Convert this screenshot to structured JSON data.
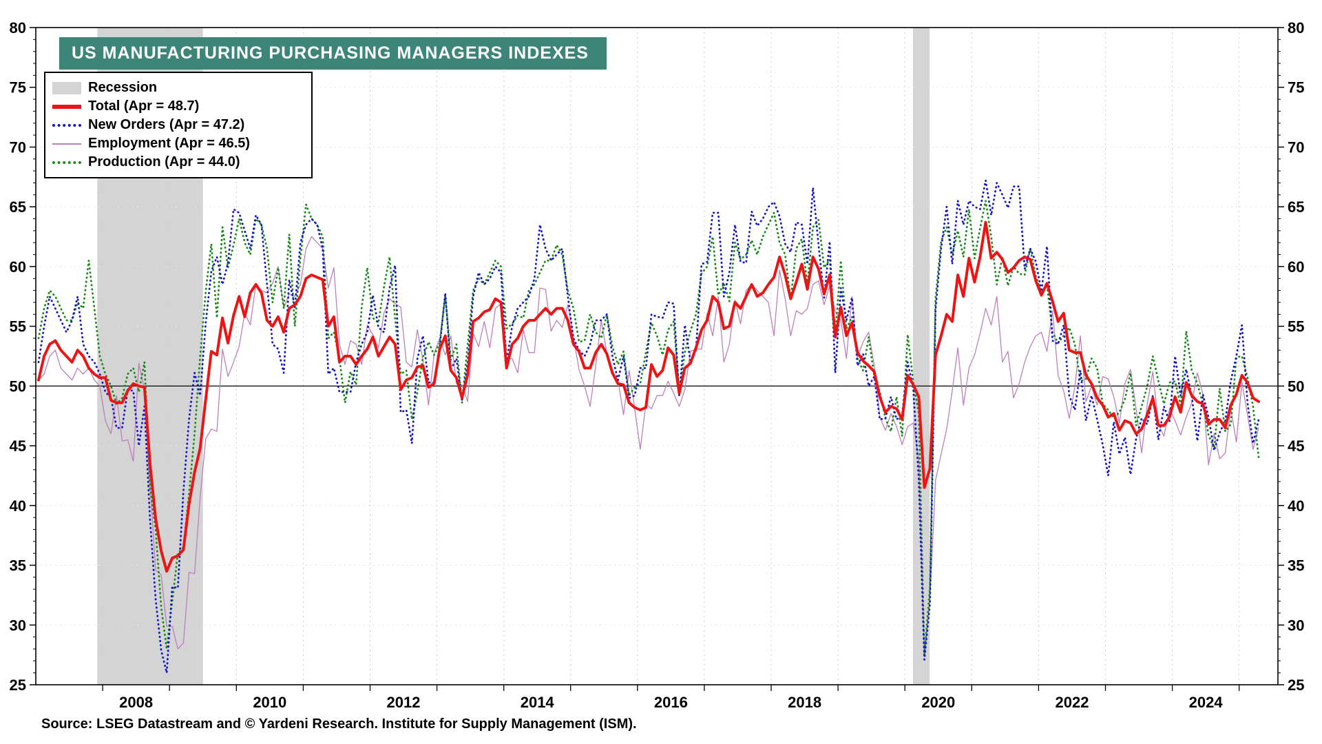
{
  "title": "US MANUFACTURING PURCHASING MANAGERS INDEXES",
  "source": "Source: LSEG Datastream and © Yardeni Research. Institute for Supply Management (ISM).",
  "legend": {
    "recession": "Recession",
    "total": "Total (Apr = 48.7)",
    "new_orders": "New Orders (Apr = 47.2)",
    "employment": "Employment (Apr = 46.5)",
    "production": "Production (Apr = 44.0)"
  },
  "chart_data": {
    "type": "line",
    "title": "US MANUFACTURING PURCHASING MANAGERS INDEXES",
    "x_range": [
      2007.0,
      2025.58
    ],
    "y_range": [
      25,
      80
    ],
    "y_tick_step": 5,
    "x_year_labels": [
      2008,
      2010,
      2012,
      2014,
      2016,
      2018,
      2020,
      2022,
      2024
    ],
    "reference_line": 50,
    "recession_bands": [
      [
        2007.92,
        2009.5
      ],
      [
        2020.12,
        2020.37
      ]
    ],
    "colors": {
      "recession": "#d4d4d4",
      "grid": "#cccccc",
      "axis": "#000000"
    },
    "start": {
      "year": 2007,
      "month": 1
    },
    "frequency": "monthly",
    "series": [
      {
        "name": "Total",
        "color": "#ec1515",
        "style": "solid",
        "width": 4,
        "latest_value": 48.7,
        "values": [
          50.5,
          52.5,
          53.5,
          53.8,
          53.0,
          52.5,
          52.0,
          53.0,
          52.5,
          51.5,
          51.0,
          50.7,
          50.7,
          48.8,
          48.6,
          48.6,
          49.6,
          50.2,
          50.0,
          49.9,
          43.5,
          38.9,
          36.2,
          34.5,
          35.6,
          35.8,
          36.3,
          40.1,
          42.8,
          44.8,
          48.9,
          52.9,
          52.6,
          55.7,
          53.6,
          55.9,
          57.5,
          55.8,
          57.8,
          58.5,
          57.8,
          55.5,
          55.0,
          55.8,
          54.5,
          56.5,
          56.8,
          57.5,
          59.0,
          59.3,
          59.1,
          58.9,
          55.0,
          55.8,
          52.0,
          52.5,
          52.5,
          51.8,
          52.5,
          53.1,
          54.1,
          52.5,
          53.3,
          54.1,
          53.5,
          49.7,
          50.5,
          50.7,
          51.6,
          51.7,
          49.9,
          50.2,
          53.1,
          54.2,
          51.3,
          50.7,
          49.0,
          50.9,
          55.4,
          55.7,
          56.2,
          56.4,
          57.3,
          57.0,
          51.5,
          53.5,
          54.0,
          55.0,
          55.5,
          55.5,
          56.0,
          56.5,
          56.0,
          56.5,
          56.5,
          55.5,
          53.5,
          52.9,
          51.5,
          51.5,
          52.8,
          53.5,
          52.7,
          51.1,
          50.2,
          50.1,
          48.6,
          48.2,
          48.0,
          48.2,
          51.8,
          50.8,
          51.3,
          53.2,
          52.6,
          49.4,
          51.5,
          51.9,
          53.2,
          54.7,
          55.5,
          57.5,
          57.0,
          54.8,
          55.0,
          57.0,
          56.5,
          57.5,
          58.5,
          57.5,
          57.8,
          58.5,
          59.1,
          60.8,
          59.3,
          57.3,
          58.7,
          60.2,
          58.1,
          60.8,
          59.8,
          57.7,
          59.3,
          54.1,
          56.6,
          54.2,
          55.3,
          52.8,
          52.1,
          51.7,
          51.2,
          49.1,
          47.8,
          48.3,
          48.1,
          47.2,
          50.9,
          50.1,
          49.1,
          41.5,
          43.1,
          52.6,
          54.2,
          56.0,
          55.4,
          59.3,
          57.5,
          60.7,
          58.7,
          60.8,
          63.7,
          60.7,
          61.2,
          60.6,
          59.5,
          59.9,
          60.5,
          60.8,
          60.6,
          58.8,
          57.6,
          58.6,
          57.1,
          55.4,
          56.1,
          53.0,
          52.8,
          52.8,
          50.9,
          50.2,
          49.0,
          48.4,
          47.4,
          47.7,
          46.3,
          47.1,
          46.9,
          46.0,
          46.4,
          47.6,
          49.0,
          46.7,
          46.7,
          47.4,
          49.1,
          47.8,
          50.3,
          49.2,
          48.7,
          48.5,
          46.8,
          47.2,
          47.2,
          46.5,
          48.4,
          49.3,
          50.9,
          50.3,
          49.0,
          48.7
        ]
      },
      {
        "name": "New Orders",
        "color": "#1515cc",
        "style": "dotted",
        "width": 2.8,
        "latest_value": 47.2,
        "values": [
          52.0,
          55.0,
          57.5,
          56.5,
          55.5,
          54.5,
          55.5,
          57.5,
          53.5,
          52.5,
          52.0,
          51.0,
          49.5,
          49.0,
          46.5,
          46.5,
          49.7,
          49.6,
          45.0,
          48.3,
          38.8,
          32.2,
          27.9,
          26.0,
          33.2,
          33.1,
          41.2,
          47.2,
          51.1,
          49.2,
          55.3,
          59.6,
          60.8,
          58.5,
          60.3,
          64.8,
          64.5,
          63.0,
          61.5,
          64.3,
          63.5,
          58.5,
          53.5,
          53.1,
          51.1,
          58.9,
          56.6,
          62.0,
          63.5,
          64.0,
          63.5,
          61.5,
          51.0,
          51.5,
          49.5,
          49.5,
          49.5,
          52.0,
          53.5,
          54.5,
          57.6,
          54.9,
          54.5,
          58.2,
          60.1,
          47.8,
          48.0,
          45.2,
          52.3,
          54.2,
          50.3,
          50.3,
          53.3,
          57.8,
          51.4,
          52.3,
          48.8,
          51.9,
          57.5,
          59.5,
          58.5,
          59.0,
          60.0,
          59.5,
          52.0,
          55.0,
          56.5,
          57.0,
          57.5,
          59.0,
          63.5,
          61.5,
          60.5,
          61.0,
          61.5,
          57.5,
          54.0,
          53.0,
          52.5,
          53.5,
          55.5,
          55.5,
          56.0,
          52.5,
          50.5,
          52.5,
          49.0,
          49.2,
          51.5,
          51.5,
          56.0,
          55.8,
          55.7,
          57.0,
          56.9,
          49.1,
          55.1,
          52.1,
          53.0,
          60.2,
          60.4,
          64.5,
          64.5,
          57.5,
          59.5,
          63.5,
          60.4,
          60.3,
          64.6,
          63.4,
          64.0,
          65.0,
          65.4,
          64.2,
          61.9,
          61.2,
          63.7,
          63.5,
          60.2,
          66.6,
          61.8,
          57.4,
          62.1,
          51.1,
          58.2,
          55.5,
          57.4,
          51.7,
          52.7,
          50.0,
          50.8,
          47.2,
          47.3,
          49.1,
          47.2,
          47.6,
          52.0,
          49.8,
          42.2,
          27.1,
          31.8,
          56.4,
          61.5,
          65.0,
          60.2,
          65.5,
          63.5,
          65.5,
          65.0,
          64.8,
          67.2,
          64.3,
          67.0,
          66.0,
          64.9,
          66.7,
          66.7,
          59.8,
          61.5,
          60.4,
          57.9,
          61.7,
          53.8,
          53.5,
          55.1,
          49.2,
          48.0,
          51.3,
          47.1,
          49.2,
          47.2,
          45.1,
          42.5,
          47.0,
          44.3,
          45.7,
          42.6,
          45.6,
          47.3,
          46.8,
          49.2,
          45.5,
          48.3,
          47.0,
          52.5,
          49.2,
          51.4,
          49.1,
          45.4,
          49.3,
          47.4,
          44.6,
          46.1,
          47.1,
          50.4,
          52.5,
          55.1,
          48.6,
          45.2,
          47.2
        ]
      },
      {
        "name": "Employment",
        "color": "#bd7ebd",
        "style": "solid",
        "width": 1.3,
        "latest_value": 46.5,
        "values": [
          50.5,
          51.0,
          52.5,
          53.0,
          51.5,
          51.0,
          50.5,
          51.5,
          51.0,
          51.5,
          50.5,
          50.0,
          47.1,
          46.0,
          49.2,
          45.4,
          45.5,
          43.7,
          51.9,
          49.7,
          41.8,
          34.6,
          34.2,
          29.9,
          29.9,
          28.0,
          28.5,
          34.4,
          34.3,
          40.7,
          45.6,
          46.4,
          46.2,
          53.1,
          50.8,
          52.0,
          53.3,
          56.1,
          55.1,
          58.5,
          58.0,
          57.8,
          58.6,
          60.0,
          56.5,
          57.7,
          57.5,
          58.5,
          61.5,
          62.5,
          62.0,
          61.5,
          58.2,
          59.9,
          53.5,
          51.8,
          53.8,
          53.5,
          51.8,
          55.1,
          54.3,
          53.2,
          56.1,
          57.3,
          56.9,
          56.6,
          52.0,
          51.6,
          54.7,
          52.1,
          48.4,
          52.7,
          54.0,
          52.6,
          54.2,
          50.2,
          50.1,
          48.7,
          54.4,
          53.3,
          55.4,
          53.2,
          56.5,
          56.9,
          52.3,
          52.3,
          51.1,
          54.7,
          52.8,
          52.8,
          58.2,
          58.1,
          54.6,
          55.5,
          54.9,
          56.8,
          54.1,
          51.4,
          50.0,
          48.3,
          51.7,
          55.5,
          52.7,
          51.2,
          50.5,
          47.6,
          51.3,
          48.1,
          44.7,
          48.5,
          48.1,
          49.2,
          49.2,
          50.4,
          49.4,
          48.3,
          49.7,
          52.9,
          53.1,
          53.1,
          56.1,
          54.2,
          57.5,
          52.0,
          53.5,
          57.2,
          55.2,
          58.0,
          58.5,
          58.0,
          57.5,
          57.0,
          54.2,
          59.7,
          57.3,
          54.2,
          56.3,
          56.0,
          56.5,
          58.5,
          58.8,
          56.8,
          58.4,
          56.2,
          55.5,
          52.3,
          57.5,
          52.4,
          53.7,
          54.5,
          51.7,
          47.4,
          46.3,
          47.7,
          46.6,
          45.1,
          46.6,
          46.9,
          43.8,
          27.5,
          32.1,
          42.1,
          44.3,
          46.4,
          49.6,
          53.2,
          48.4,
          51.5,
          52.6,
          54.4,
          56.5,
          55.1,
          57.5,
          52.0,
          52.9,
          49.0,
          50.2,
          52.0,
          53.3,
          54.2,
          54.5,
          52.9,
          56.3,
          50.9,
          49.6,
          47.3,
          49.9,
          54.2,
          48.7,
          50.0,
          48.4,
          50.8,
          50.6,
          49.1,
          46.9,
          50.2,
          51.4,
          48.1,
          44.4,
          48.5,
          51.2,
          46.8,
          45.8,
          48.1,
          47.1,
          45.9,
          47.4,
          48.6,
          51.1,
          49.3,
          43.4,
          46.0,
          43.9,
          44.4,
          48.1,
          45.3,
          50.3,
          47.6,
          44.7,
          46.5
        ]
      },
      {
        "name": "Production",
        "color": "#1a8a1a",
        "style": "dotted",
        "width": 2.8,
        "latest_value": 44.0,
        "values": [
          54.0,
          56.5,
          58.0,
          57.5,
          56.5,
          55.5,
          55.5,
          57.0,
          56.5,
          60.5,
          56.5,
          52.5,
          51.0,
          50.0,
          48.5,
          49.0,
          51.0,
          51.5,
          49.5,
          52.0,
          41.5,
          38.0,
          31.5,
          28.0,
          32.0,
          36.0,
          36.5,
          41.0,
          46.0,
          52.5,
          57.9,
          61.9,
          55.7,
          63.3,
          59.9,
          61.8,
          64.0,
          62.0,
          61.0,
          64.0,
          63.5,
          61.5,
          57.0,
          59.9,
          56.5,
          62.7,
          55.0,
          60.7,
          65.2,
          64.0,
          63.5,
          62.5,
          54.0,
          54.5,
          52.3,
          48.6,
          51.2,
          50.1,
          56.6,
          59.9,
          55.7,
          55.3,
          58.3,
          60.8,
          55.6,
          51.0,
          51.3,
          47.2,
          49.5,
          52.4,
          53.7,
          52.6,
          53.6,
          57.6,
          52.2,
          53.5,
          48.6,
          53.4,
          58.0,
          59.0,
          58.5,
          59.5,
          60.5,
          60.0,
          54.8,
          55.2,
          55.9,
          55.7,
          58.0,
          58.5,
          59.5,
          60.5,
          60.5,
          61.8,
          61.0,
          58.0,
          56.5,
          53.7,
          53.8,
          56.0,
          54.5,
          54.0,
          56.0,
          53.3,
          51.8,
          52.9,
          49.2,
          49.9,
          50.2,
          52.8,
          55.3,
          54.2,
          52.6,
          54.7,
          55.4,
          49.6,
          52.8,
          54.6,
          56.0,
          59.4,
          60.0,
          62.5,
          57.6,
          58.6,
          57.1,
          62.0,
          60.6,
          61.0,
          62.2,
          61.0,
          62.5,
          63.5,
          64.5,
          62.0,
          61.0,
          57.2,
          61.5,
          62.3,
          58.5,
          63.3,
          63.9,
          59.9,
          60.6,
          54.3,
          60.5,
          54.8,
          55.8,
          52.3,
          51.3,
          54.1,
          50.8,
          49.5,
          47.3,
          46.2,
          49.1,
          45.8,
          54.3,
          50.3,
          47.7,
          27.5,
          33.2,
          57.3,
          62.1,
          63.3,
          61.0,
          63.0,
          60.8,
          64.8,
          60.7,
          63.2,
          65.5,
          62.5,
          58.5,
          60.8,
          58.4,
          60.0,
          59.4,
          59.3,
          61.5,
          59.2,
          57.8,
          58.5,
          54.5,
          53.6,
          54.2,
          54.9,
          53.5,
          50.4,
          50.6,
          52.3,
          51.5,
          48.5,
          48.0,
          47.3,
          47.8,
          48.9,
          51.1,
          46.7,
          48.3,
          50.0,
          52.5,
          50.4,
          48.5,
          50.3,
          50.4,
          48.4,
          54.6,
          51.3,
          50.2,
          48.5,
          45.9,
          44.8,
          49.8,
          46.2,
          46.8,
          52.4,
          52.5,
          50.7,
          48.3,
          44.0
        ]
      }
    ]
  }
}
